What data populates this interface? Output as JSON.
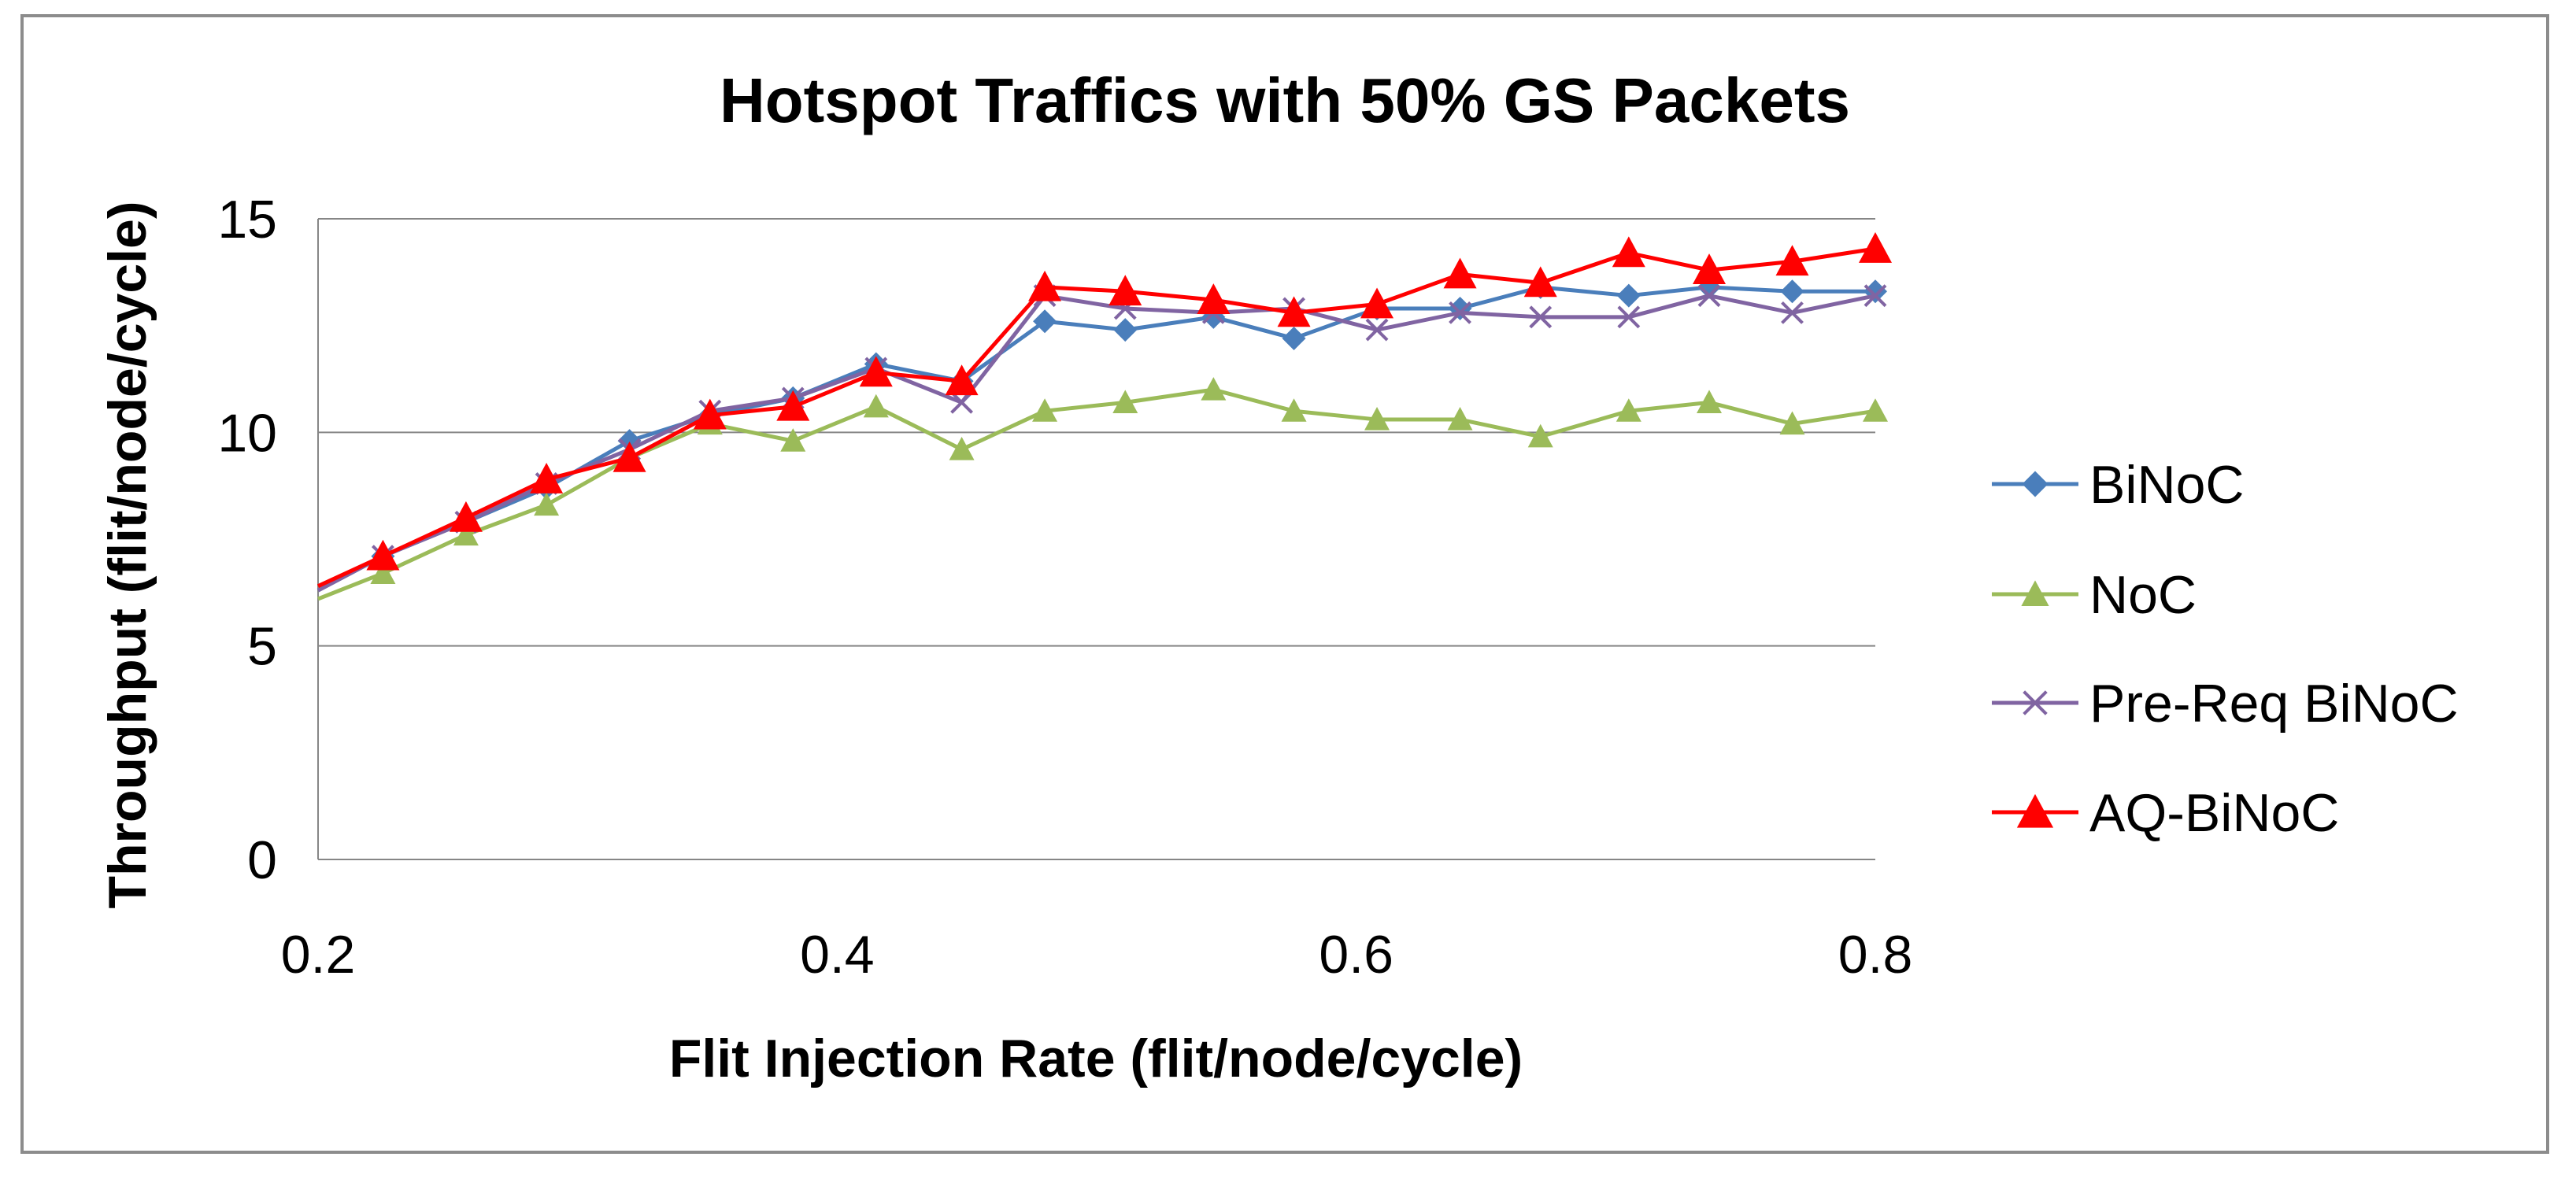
{
  "chart_data": {
    "type": "line",
    "title": "Hotspot Traffics with 50% GS Packets",
    "xlabel": "Flit Injection Rate (flit/node/cycle)",
    "ylabel": "Throughput (flit/node/cycle)",
    "xlim": [
      0.2,
      0.8
    ],
    "ylim": [
      0,
      15
    ],
    "xticks": [
      "0.2",
      "0.4",
      "0.6",
      "0.8"
    ],
    "yticks": [
      "0",
      "5",
      "10",
      "15"
    ],
    "grid": "horizontal",
    "legend_position": "right",
    "x": [
      0.2,
      0.225,
      0.257,
      0.288,
      0.32,
      0.351,
      0.383,
      0.415,
      0.448,
      0.48,
      0.511,
      0.545,
      0.576,
      0.608,
      0.64,
      0.671,
      0.705,
      0.736,
      0.768,
      0.8
    ],
    "series": [
      {
        "name": "BiNoC",
        "color": "#4a7ebb",
        "marker": "diamond",
        "values": [
          6.3,
          7.1,
          7.9,
          8.7,
          9.8,
          10.4,
          10.8,
          11.6,
          11.2,
          12.6,
          12.4,
          12.7,
          12.2,
          12.9,
          12.9,
          13.4,
          13.2,
          13.4,
          13.3,
          13.3
        ]
      },
      {
        "name": "NoC",
        "color": "#9bbb59",
        "marker": "triangle",
        "values": [
          6.1,
          6.7,
          7.6,
          8.3,
          9.4,
          10.2,
          9.8,
          10.6,
          9.6,
          10.5,
          10.7,
          11.0,
          10.5,
          10.3,
          10.3,
          9.9,
          10.5,
          10.7,
          10.2,
          10.5
        ]
      },
      {
        "name": "Pre-Req BiNoC",
        "color": "#8064a2",
        "marker": "x",
        "values": [
          6.3,
          7.1,
          7.9,
          8.8,
          9.6,
          10.5,
          10.8,
          11.5,
          10.7,
          13.2,
          12.9,
          12.8,
          12.9,
          12.4,
          12.8,
          12.7,
          12.7,
          13.2,
          12.8,
          13.2
        ]
      },
      {
        "name": "AQ-BiNoC",
        "color": "#ff0000",
        "marker": "triangle",
        "values": [
          6.4,
          7.1,
          8.0,
          8.9,
          9.4,
          10.4,
          10.6,
          11.4,
          11.2,
          13.4,
          13.3,
          13.1,
          12.8,
          13.0,
          13.7,
          13.5,
          14.2,
          13.8,
          14.0,
          14.3
        ]
      }
    ]
  }
}
